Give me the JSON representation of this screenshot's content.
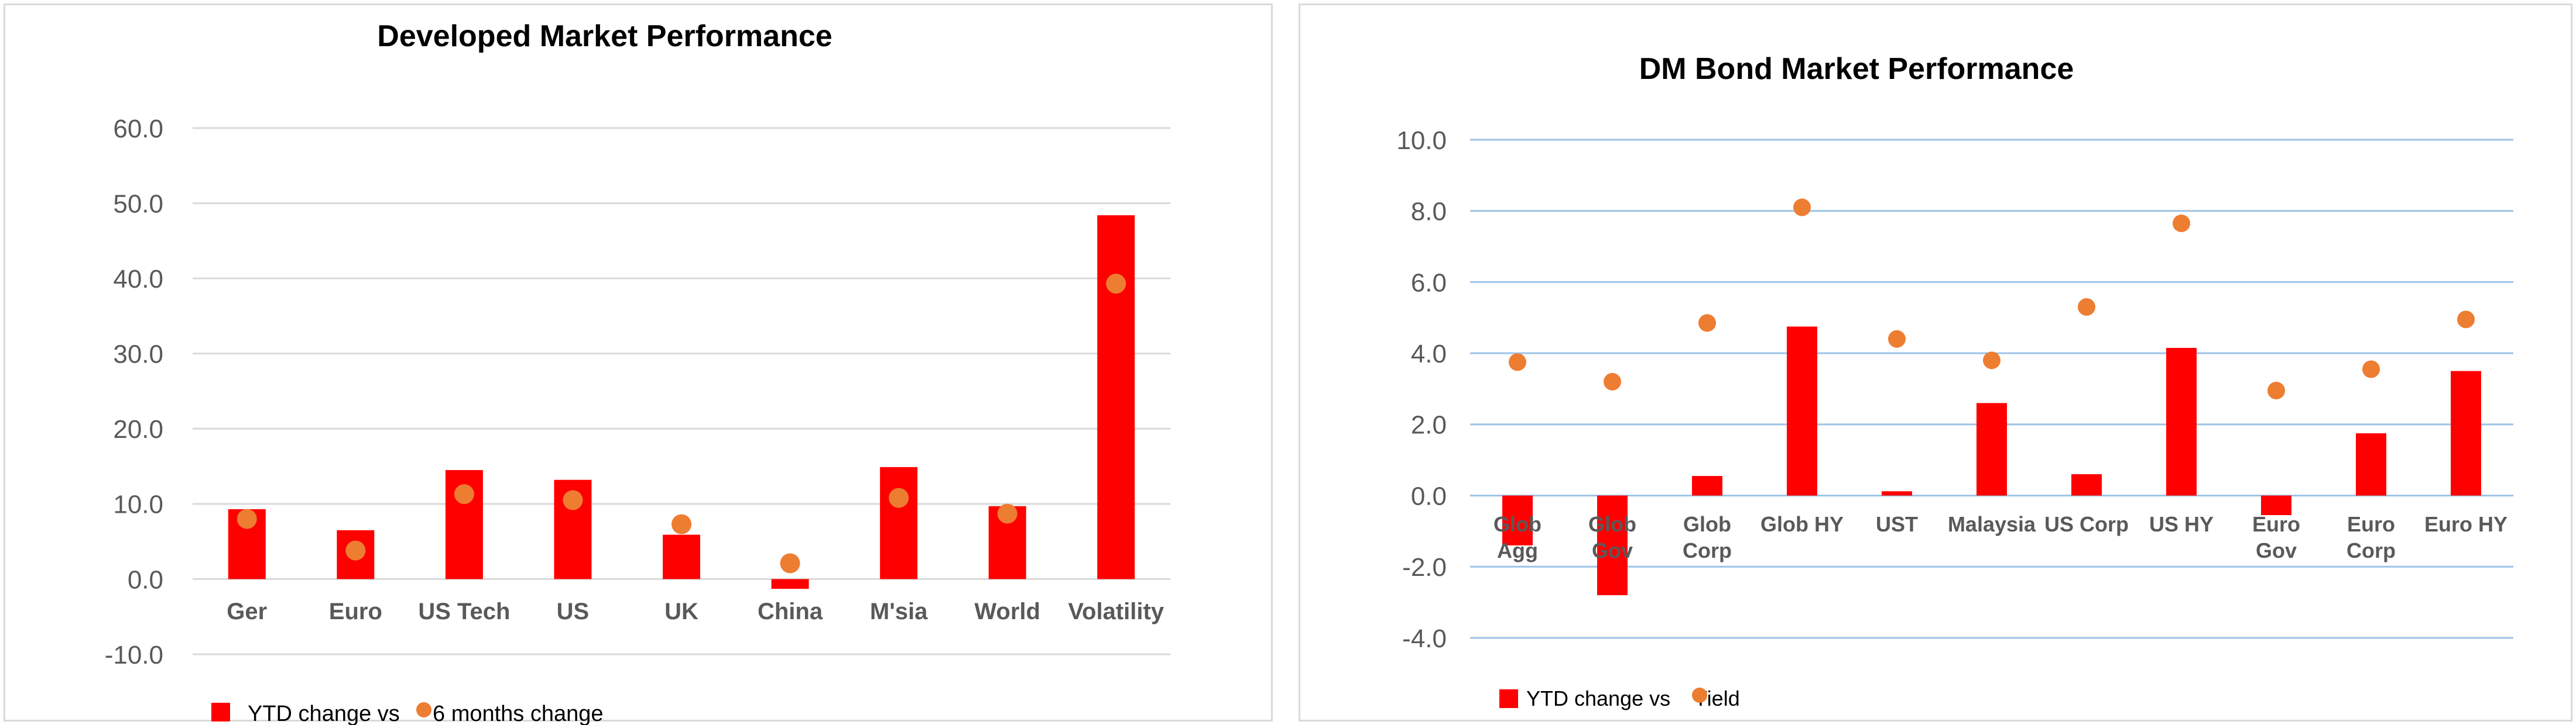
{
  "chart_data": [
    {
      "type": "bar",
      "title": "Developed Market Performance",
      "categories": [
        "Ger",
        "Euro",
        "US Tech",
        "US",
        "UK",
        "China",
        "M'sia",
        "World",
        "Volatility"
      ],
      "series": [
        {
          "name": "YTD change vs",
          "kind": "bar",
          "color": "#ff0000",
          "values": [
            9.3,
            6.5,
            14.5,
            13.2,
            5.9,
            -1.3,
            14.9,
            9.7,
            48.4
          ]
        },
        {
          "name": "6 months change",
          "kind": "marker",
          "color": "#ed7d31",
          "values": [
            8.0,
            3.8,
            11.3,
            10.5,
            7.3,
            2.1,
            10.8,
            8.7,
            39.3
          ]
        }
      ],
      "ylim": [
        -10,
        60
      ],
      "yticks": [
        "60.0",
        "50.0",
        "40.0",
        "30.0",
        "20.0",
        "10.0",
        "0.0",
        "-10.0"
      ],
      "ytick_values": [
        60,
        50,
        40,
        30,
        20,
        10,
        0,
        -10
      ],
      "xlabel": "",
      "ylabel": "",
      "grid": true,
      "legend": "bottom-left"
    },
    {
      "type": "bar",
      "title": "DM Bond Market Performance",
      "categories": [
        "Glob Agg",
        "Glob Gov",
        "Glob Corp",
        "Glob HY",
        "UST",
        "Malaysia",
        "US Corp",
        "US HY",
        "Euro Gov",
        "Euro Corp",
        "Euro HY"
      ],
      "series": [
        {
          "name": "YTD change vs",
          "kind": "bar",
          "color": "#ff0000",
          "values": [
            -1.4,
            -2.8,
            0.55,
            4.75,
            0.12,
            2.6,
            0.6,
            4.15,
            -0.55,
            1.75,
            3.5
          ]
        },
        {
          "name": "Yield",
          "kind": "marker",
          "color": "#ed7d31",
          "values": [
            3.75,
            3.2,
            4.85,
            8.1,
            4.4,
            3.8,
            5.3,
            7.65,
            2.95,
            3.55,
            4.95
          ]
        }
      ],
      "ylim": [
        -4,
        10
      ],
      "yticks": [
        "10.0",
        "8.0",
        "6.0",
        "4.0",
        "2.0",
        "0.0",
        "-2.0",
        "-4.0"
      ],
      "ytick_values": [
        10,
        8,
        6,
        4,
        2,
        0,
        -2,
        -4
      ],
      "xlabel": "",
      "ylabel": "",
      "grid": true,
      "legend": "bottom-left"
    }
  ]
}
